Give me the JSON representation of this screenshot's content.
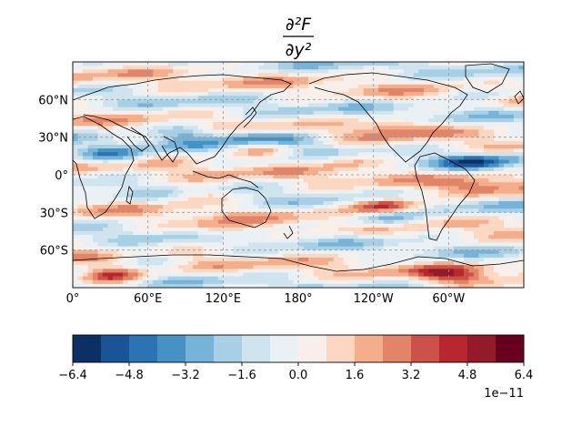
{
  "title": {
    "numerator": "∂²F",
    "denominator": "∂y²"
  },
  "map": {
    "projection": "PlateCarree",
    "central_longitude": 180,
    "longitude_tick_labels": [
      "0°",
      "60°E",
      "120°E",
      "180°",
      "120°W",
      "60°W"
    ],
    "latitude_tick_labels": [
      "60°N",
      "30°N",
      "0°",
      "30°S",
      "60°S"
    ],
    "gridlines": "dashed gray",
    "coastlines": true
  },
  "colorbar": {
    "colormap": "RdBu_r",
    "tick_labels": [
      "−6.4",
      "−4.8",
      "−3.2",
      "−1.6",
      "0.0",
      "1.6",
      "3.2",
      "4.8",
      "6.4"
    ],
    "scale_label": "1e−11",
    "colors": [
      "#0a3162",
      "#1a5498",
      "#2c73b4",
      "#4592c5",
      "#77b3d8",
      "#a7cfe5",
      "#d0e4ef",
      "#eaf1f5",
      "#f8efea",
      "#fcd7c1",
      "#f4ae8c",
      "#e28468",
      "#cb5149",
      "#b8272e",
      "#921a29",
      "#67001f"
    ]
  },
  "chart_data": {
    "type": "heatmap",
    "variable": "∂²F/∂y²",
    "x_range": [
      0,
      360
    ],
    "y_range": [
      -90,
      90
    ],
    "color_range": [
      -6.4e-11,
      6.4e-11
    ],
    "levels": [
      -6.4,
      -5.6,
      -4.8,
      -4.0,
      -3.2,
      -2.4,
      -1.6,
      -0.8,
      0.0,
      0.8,
      1.6,
      2.4,
      3.2,
      4.0,
      4.8,
      5.6,
      6.4
    ],
    "level_scale": 1e-11,
    "features": [
      {
        "lon": 30,
        "lat": 15,
        "value": -3.2
      },
      {
        "lon": 90,
        "lat": 33,
        "value": -3.0
      },
      {
        "lon": 140,
        "lat": 30,
        "value": -3.2
      },
      {
        "lon": 150,
        "lat": 20,
        "value": 3.0
      },
      {
        "lon": 175,
        "lat": 27,
        "value": -2.5
      },
      {
        "lon": 220,
        "lat": 12,
        "value": 2.2
      },
      {
        "lon": 260,
        "lat": 38,
        "value": 2.5
      },
      {
        "lon": 250,
        "lat": -25,
        "value": 5.6
      },
      {
        "lon": 250,
        "lat": -35,
        "value": -4.0
      },
      {
        "lon": 320,
        "lat": 10,
        "value": -3.5
      },
      {
        "lon": 320,
        "lat": -10,
        "value": 2.5
      },
      {
        "lon": 30,
        "lat": -80,
        "value": 4.8
      },
      {
        "lon": 300,
        "lat": -80,
        "value": 3.5
      },
      {
        "lon": 60,
        "lat": -65,
        "value": -2.2
      },
      {
        "lon": 100,
        "lat": -15,
        "value": 2.0
      },
      {
        "lon": 120,
        "lat": -45,
        "value": 2.5
      },
      {
        "lon": 330,
        "lat": 65,
        "value": -2.0
      }
    ]
  }
}
